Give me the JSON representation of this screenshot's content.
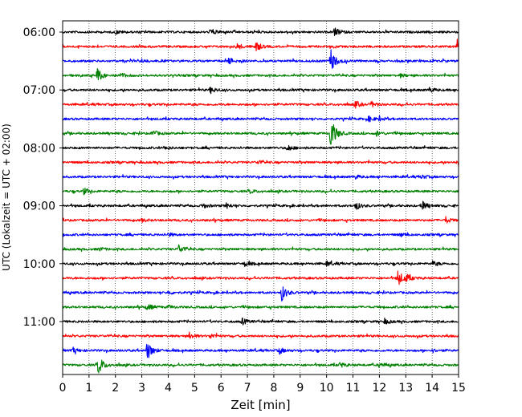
{
  "chart_data": {
    "type": "line",
    "title": "",
    "xlabel": "Zeit  [min]",
    "ylabel": "UTC (Lokalzeit = UTC + 02:00)",
    "xlim": [
      0,
      15
    ],
    "x_ticks": [
      "0",
      "1",
      "2",
      "3",
      "4",
      "5",
      "6",
      "7",
      "8",
      "9",
      "10",
      "11",
      "12",
      "13",
      "14",
      "15"
    ],
    "y_tick_labels": [
      "06:00",
      "07:00",
      "08:00",
      "09:00",
      "10:00",
      "11:00"
    ],
    "grid": "vertical dotted lines at each minute",
    "trace_interval_minutes": 15,
    "trace_color_cycle": [
      "#000000",
      "#ff0000",
      "#0000ff",
      "#008000"
    ],
    "traces": [
      {
        "start": "06:00",
        "color": "#000000",
        "events": [
          {
            "t": 5.6,
            "amp": 4
          },
          {
            "t": 10.3,
            "amp": 5
          },
          {
            "t": 2.0,
            "amp": 2
          }
        ]
      },
      {
        "start": "06:15",
        "color": "#ff0000",
        "events": [
          {
            "t": 7.3,
            "amp": 7
          },
          {
            "t": 6.6,
            "amp": 4
          },
          {
            "t": 14.95,
            "amp": 9
          }
        ]
      },
      {
        "start": "06:30",
        "color": "#0000ff",
        "events": [
          {
            "t": 6.3,
            "amp": 4
          },
          {
            "t": 10.15,
            "amp": 14
          },
          {
            "t": 3.0,
            "amp": 2
          }
        ]
      },
      {
        "start": "06:45",
        "color": "#008000",
        "events": [
          {
            "t": 1.3,
            "amp": 9
          },
          {
            "t": 2.2,
            "amp": 3
          },
          {
            "t": 12.8,
            "amp": 2
          }
        ]
      },
      {
        "start": "07:00",
        "color": "#000000",
        "events": [
          {
            "t": 5.6,
            "amp": 4
          },
          {
            "t": 13.9,
            "amp": 3
          }
        ]
      },
      {
        "start": "07:15",
        "color": "#ff0000",
        "events": [
          {
            "t": 11.1,
            "amp": 4
          },
          {
            "t": 11.7,
            "amp": 3
          }
        ]
      },
      {
        "start": "07:30",
        "color": "#0000ff",
        "events": [
          {
            "t": 11.6,
            "amp": 3
          },
          {
            "t": 12.0,
            "amp": 2
          }
        ]
      },
      {
        "start": "07:45",
        "color": "#008000",
        "events": [
          {
            "t": 10.15,
            "amp": 22
          },
          {
            "t": 3.4,
            "amp": 4
          },
          {
            "t": 11.9,
            "amp": 3
          }
        ]
      },
      {
        "start": "08:00",
        "color": "#000000",
        "events": [
          {
            "t": 8.5,
            "amp": 4
          },
          {
            "t": 3.9,
            "amp": 2
          }
        ]
      },
      {
        "start": "08:15",
        "color": "#ff0000",
        "events": [
          {
            "t": 14.95,
            "amp": 5
          },
          {
            "t": 7.4,
            "amp": 2
          }
        ]
      },
      {
        "start": "08:30",
        "color": "#0000ff",
        "events": [
          {
            "t": 11.1,
            "amp": 2
          },
          {
            "t": 13.6,
            "amp": 2
          }
        ]
      },
      {
        "start": "08:45",
        "color": "#008000",
        "events": [
          {
            "t": 0.8,
            "amp": 4
          },
          {
            "t": 7.1,
            "amp": 2
          }
        ]
      },
      {
        "start": "09:00",
        "color": "#000000",
        "events": [
          {
            "t": 5.3,
            "amp": 3
          },
          {
            "t": 6.2,
            "amp": 3
          },
          {
            "t": 11.1,
            "amp": 5
          },
          {
            "t": 13.6,
            "amp": 6
          }
        ]
      },
      {
        "start": "09:15",
        "color": "#ff0000",
        "events": [
          {
            "t": 14.5,
            "amp": 4
          },
          {
            "t": 3.0,
            "amp": 2
          }
        ]
      },
      {
        "start": "09:30",
        "color": "#0000ff",
        "events": [
          {
            "t": 4.0,
            "amp": 2
          },
          {
            "t": 12.8,
            "amp": 2
          }
        ]
      },
      {
        "start": "09:45",
        "color": "#008000",
        "events": [
          {
            "t": 4.4,
            "amp": 5
          },
          {
            "t": 1.4,
            "amp": 2
          }
        ]
      },
      {
        "start": "10:00",
        "color": "#000000",
        "events": [
          {
            "t": 6.9,
            "amp": 3
          },
          {
            "t": 10.0,
            "amp": 3
          },
          {
            "t": 14.0,
            "amp": 3
          }
        ]
      },
      {
        "start": "10:15",
        "color": "#ff0000",
        "events": [
          {
            "t": 12.7,
            "amp": 10
          },
          {
            "t": 13.0,
            "amp": 4
          }
        ]
      },
      {
        "start": "10:30",
        "color": "#0000ff",
        "events": [
          {
            "t": 8.3,
            "amp": 10
          },
          {
            "t": 4.0,
            "amp": 2
          }
        ]
      },
      {
        "start": "10:45",
        "color": "#008000",
        "events": [
          {
            "t": 3.2,
            "amp": 4
          },
          {
            "t": 4.0,
            "amp": 2
          }
        ]
      },
      {
        "start": "11:00",
        "color": "#000000",
        "events": [
          {
            "t": 6.8,
            "amp": 4
          },
          {
            "t": 12.2,
            "amp": 3
          }
        ]
      },
      {
        "start": "11:15",
        "color": "#ff0000",
        "events": [
          {
            "t": 4.8,
            "amp": 4
          },
          {
            "t": 5.6,
            "amp": 3
          }
        ]
      },
      {
        "start": "11:30",
        "color": "#0000ff",
        "events": [
          {
            "t": 3.2,
            "amp": 12
          },
          {
            "t": 8.2,
            "amp": 4
          },
          {
            "t": 0.4,
            "amp": 3
          },
          {
            "t": 14.0,
            "amp": 2
          }
        ]
      },
      {
        "start": "11:45",
        "color": "#008000",
        "events": [
          {
            "t": 1.35,
            "amp": 12
          },
          {
            "t": 10.5,
            "amp": 3
          },
          {
            "t": 12.0,
            "amp": 3
          }
        ]
      }
    ]
  }
}
